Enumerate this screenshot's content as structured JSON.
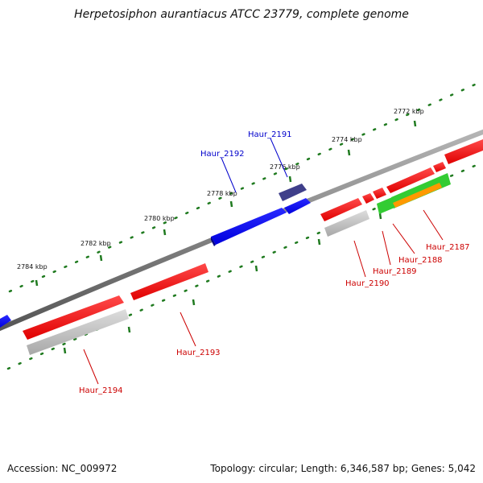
{
  "title": "Herpetosiphon aurantiacus ATCC 23779, complete genome",
  "footer": {
    "accession": "Accession: NC_009972",
    "summary": "Topology: circular; Length: 6,346,587 bp; Genes: 5,042"
  },
  "scale_ticks": [
    "2772 kbp",
    "2774 kbp",
    "2776 kbp",
    "2778 kbp",
    "2780 kbp",
    "2782 kbp",
    "2784 kbp"
  ],
  "genes": [
    {
      "id": "Haur_2187",
      "label": "Haur_2187",
      "color": "#cc0000"
    },
    {
      "id": "Haur_2188",
      "label": "Haur_2188",
      "color": "#cc0000"
    },
    {
      "id": "Haur_2189",
      "label": "Haur_2189",
      "color": "#cc0000"
    },
    {
      "id": "Haur_2190",
      "label": "Haur_2190",
      "color": "#cc0000"
    },
    {
      "id": "Haur_2191",
      "label": "Haur_2191",
      "color": "#0000cc"
    },
    {
      "id": "Haur_2192",
      "label": "Haur_2192",
      "color": "#0000cc"
    },
    {
      "id": "Haur_2193",
      "label": "Haur_2193",
      "color": "#cc0000"
    },
    {
      "id": "Haur_2194",
      "label": "Haur_2194",
      "color": "#cc0000"
    }
  ],
  "colors": {
    "forward_gene": "#ff0000",
    "reverse_gene": "#0000ff",
    "cds_gray": "#c0c0c0",
    "rna_purple": "#3f3f8a",
    "feature_green": "#33cc33",
    "feature_orange": "#ff9900",
    "backbone": "#7a7a7a",
    "tick_green": "#1f7a1f"
  }
}
